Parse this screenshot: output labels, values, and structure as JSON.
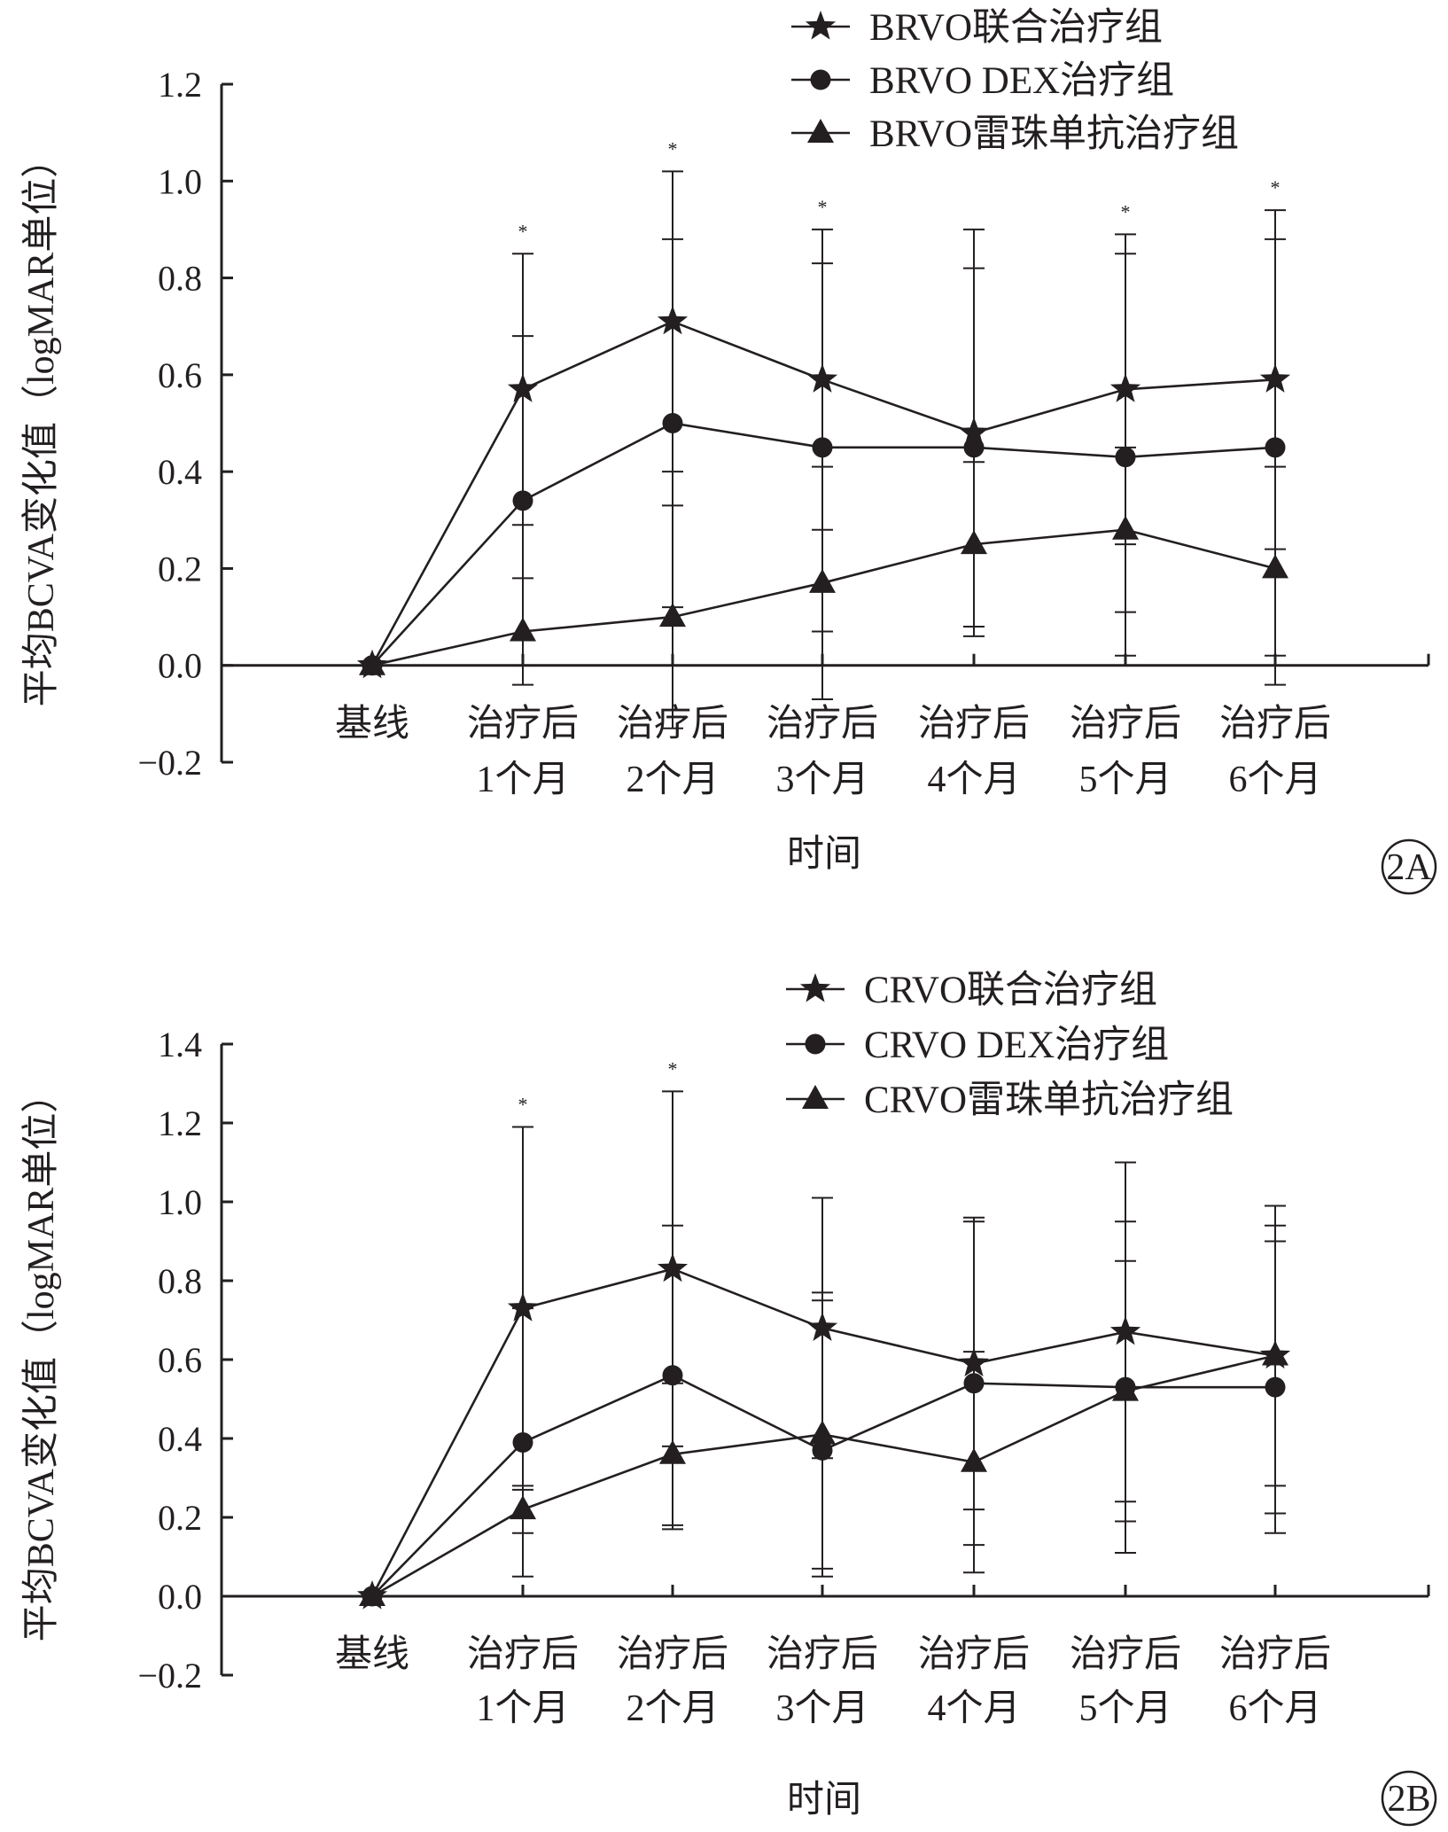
{
  "chart_data": [
    {
      "panel_label": "2A",
      "type": "line",
      "xlabel": "时间",
      "ylabel": "平均BCVA变化值（logMAR单位）",
      "categories": [
        "基线",
        "治疗后1个月",
        "治疗后2个月",
        "治疗后3个月",
        "治疗后4个月",
        "治疗后5个月",
        "治疗后6个月"
      ],
      "category_lines": [
        [
          "基线"
        ],
        [
          "治疗后",
          "1个月"
        ],
        [
          "治疗后",
          "2个月"
        ],
        [
          "治疗后",
          "3个月"
        ],
        [
          "治疗后",
          "4个月"
        ],
        [
          "治疗后",
          "5个月"
        ],
        [
          "治疗后",
          "6个月"
        ]
      ],
      "ylim": [
        -0.2,
        1.2
      ],
      "yticks": [
        -0.2,
        0.0,
        0.2,
        0.4,
        0.6,
        0.8,
        1.0,
        1.2
      ],
      "ytick_labels": [
        "−0.2",
        "0.0",
        "0.2",
        "0.4",
        "0.6",
        "0.8",
        "1.0",
        "1.2"
      ],
      "grid": false,
      "legend_position": "top-right",
      "series": [
        {
          "name": "BRVO联合治疗组",
          "marker": "star",
          "values": [
            0,
            0.57,
            0.71,
            0.59,
            0.48,
            0.57,
            0.59
          ],
          "err_upper": [
            null,
            0.85,
            1.02,
            0.9,
            0.9,
            0.89,
            0.94
          ],
          "err_lower": [
            null,
            0.29,
            0.4,
            0.28,
            0.06,
            0.25,
            0.24
          ]
        },
        {
          "name": "BRVO DEX治疗组",
          "marker": "circle",
          "values": [
            0,
            0.34,
            0.5,
            0.45,
            0.45,
            0.43,
            0.45
          ],
          "err_upper": [
            null,
            0.68,
            0.88,
            0.83,
            0.82,
            0.85,
            0.88
          ],
          "err_lower": [
            null,
            0.0,
            0.12,
            0.07,
            0.08,
            0.02,
            0.02
          ]
        },
        {
          "name": "BRVO雷珠单抗治疗组",
          "marker": "triangle",
          "values": [
            0,
            0.07,
            0.1,
            0.17,
            0.25,
            0.28,
            0.2
          ],
          "err_upper": [
            null,
            0.18,
            0.33,
            0.41,
            0.42,
            0.45,
            0.41
          ],
          "err_lower": [
            null,
            -0.04,
            -0.13,
            -0.07,
            0.08,
            0.11,
            -0.04
          ]
        }
      ],
      "significance": [
        "",
        "*",
        "*",
        "*",
        "",
        "*",
        "*"
      ]
    },
    {
      "panel_label": "2B",
      "type": "line",
      "xlabel": "时间",
      "ylabel": "平均BCVA变化值（logMAR单位）",
      "categories": [
        "基线",
        "治疗后1个月",
        "治疗后2个月",
        "治疗后3个月",
        "治疗后4个月",
        "治疗后5个月",
        "治疗后6个月"
      ],
      "category_lines": [
        [
          "基线"
        ],
        [
          "治疗后",
          "1个月"
        ],
        [
          "治疗后",
          "2个月"
        ],
        [
          "治疗后",
          "3个月"
        ],
        [
          "治疗后",
          "4个月"
        ],
        [
          "治疗后",
          "5个月"
        ],
        [
          "治疗后",
          "6个月"
        ]
      ],
      "ylim": [
        -0.2,
        1.4
      ],
      "yticks": [
        -0.2,
        0.0,
        0.2,
        0.4,
        0.6,
        0.8,
        1.0,
        1.2,
        1.4
      ],
      "ytick_labels": [
        "−0.2",
        "0.0",
        "0.2",
        "0.4",
        "0.6",
        "0.8",
        "1.0",
        "1.2",
        "1.4"
      ],
      "grid": false,
      "legend_position": "top-right",
      "series": [
        {
          "name": "CRVO联合治疗组",
          "marker": "star",
          "values": [
            0,
            0.73,
            0.83,
            0.68,
            0.59,
            0.67,
            0.61
          ],
          "err_upper": [
            null,
            1.19,
            1.28,
            1.01,
            0.96,
            1.1,
            0.99
          ],
          "err_lower": [
            null,
            0.27,
            0.38,
            0.35,
            0.22,
            0.24,
            0.28
          ]
        },
        {
          "name": "CRVO DEX治疗组",
          "marker": "circle",
          "values": [
            0,
            0.39,
            0.56,
            0.37,
            0.54,
            0.53,
            0.53
          ],
          "err_upper": [
            null,
            0.73,
            0.94,
            0.77,
            0.95,
            0.95,
            0.9
          ],
          "err_lower": [
            null,
            0.05,
            0.18,
            0.05,
            0.13,
            0.11,
            0.16
          ]
        },
        {
          "name": "CRVO雷珠单抗治疗组",
          "marker": "triangle",
          "values": [
            0,
            0.22,
            0.36,
            0.41,
            0.34,
            0.52,
            0.61
          ],
          "err_upper": [
            null,
            0.28,
            0.54,
            0.75,
            0.62,
            0.85,
            0.94
          ],
          "err_lower": [
            null,
            0.16,
            0.17,
            0.07,
            0.06,
            0.19,
            0.21
          ]
        }
      ],
      "significance": [
        "",
        "*",
        "*",
        "",
        "",
        "",
        ""
      ]
    }
  ]
}
